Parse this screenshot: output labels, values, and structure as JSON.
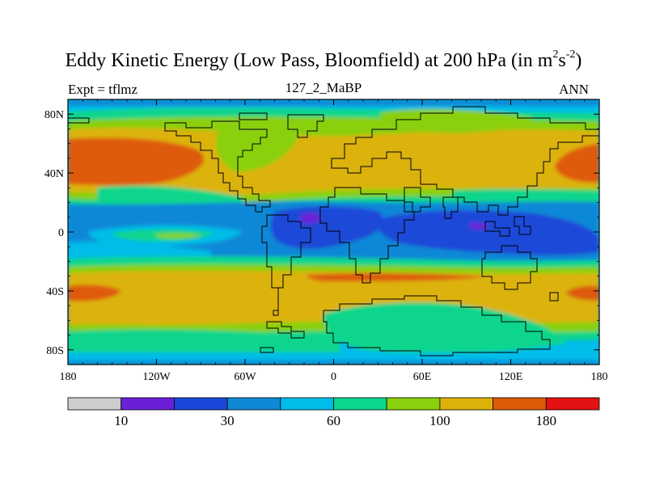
{
  "title": {
    "main": "Eddy Kinetic Energy (Low Pass, Bloomfield) at 200 hPa (in m",
    "sup1": "2",
    "mid": "s",
    "sup2": "-2",
    "end": ")"
  },
  "subtitle_left": "Expt = tflmz",
  "subtitle_center": "127_2_MaBP",
  "subtitle_right": "ANN",
  "map": {
    "projection": "cylindrical-equidistant",
    "lon_range": [
      -180,
      180
    ],
    "lat_range": [
      -90,
      90
    ],
    "lat_ticks": [
      {
        "value": 80,
        "label": "80N"
      },
      {
        "value": 40,
        "label": "40N"
      },
      {
        "value": 0,
        "label": "0"
      },
      {
        "value": -40,
        "label": "40S"
      },
      {
        "value": -80,
        "label": "80S"
      }
    ],
    "lon_ticks": [
      {
        "value": -180,
        "label": "180"
      },
      {
        "value": -120,
        "label": "120W"
      },
      {
        "value": -60,
        "label": "60W"
      },
      {
        "value": 0,
        "label": "0"
      },
      {
        "value": 60,
        "label": "60E"
      },
      {
        "value": 120,
        "label": "120E"
      },
      {
        "value": 180,
        "label": "180"
      }
    ]
  },
  "colorbar": {
    "colors": [
      "#cdcdcd",
      "#6b20d8",
      "#1a48d8",
      "#0f88d6",
      "#00bce8",
      "#0ad68c",
      "#8ad00c",
      "#dcb208",
      "#de5a08",
      "#e41212"
    ],
    "labels": [
      {
        "after_box": 1,
        "text": "10"
      },
      {
        "after_box": 3,
        "text": "30"
      },
      {
        "after_box": 5,
        "text": "60"
      },
      {
        "after_box": 7,
        "text": "100"
      },
      {
        "after_box": 9,
        "text": "180"
      }
    ]
  }
}
